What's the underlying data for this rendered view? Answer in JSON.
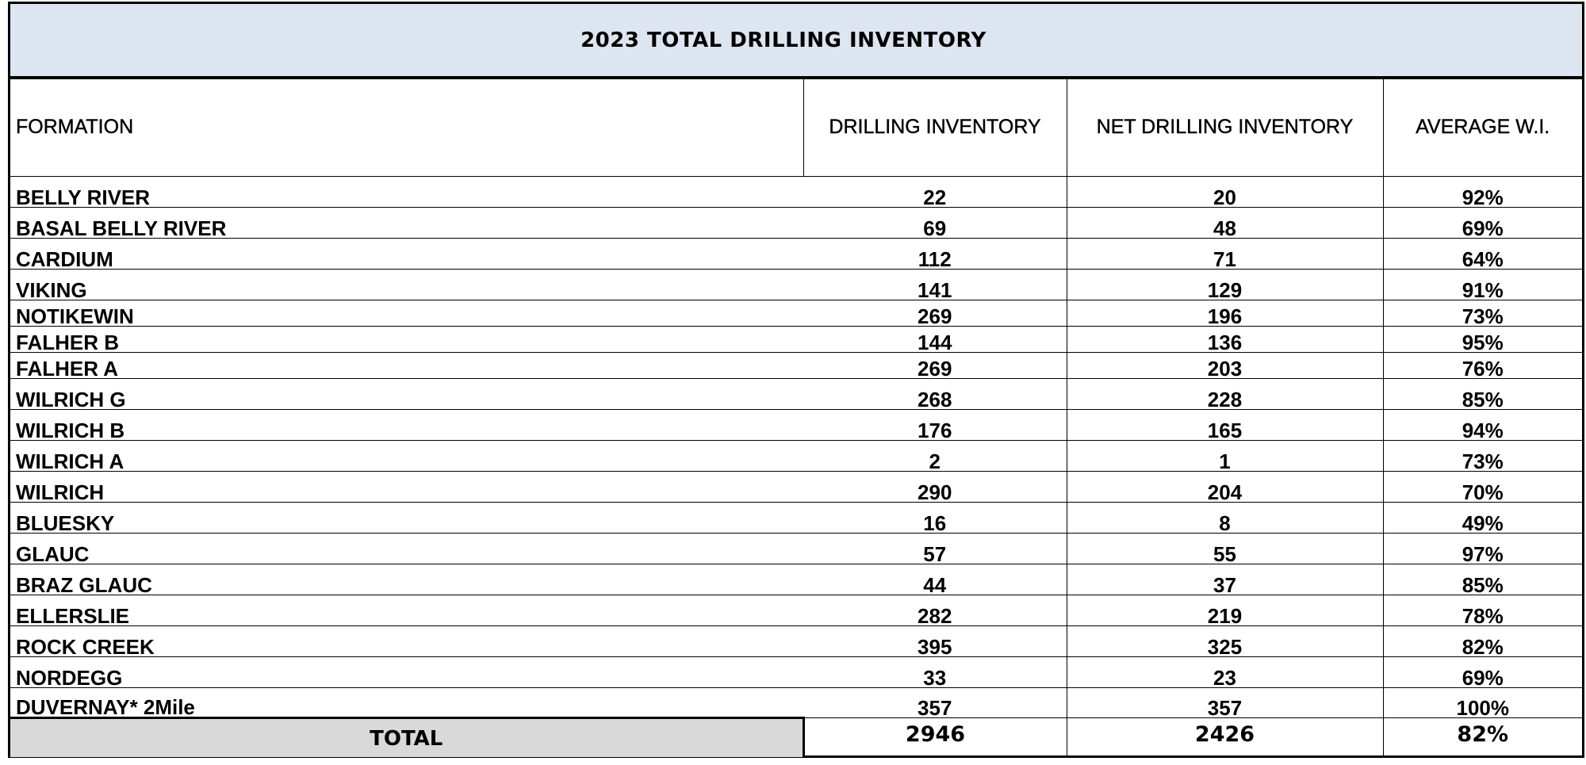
{
  "title": "2023 TOTAL DRILLING INVENTORY",
  "columns": {
    "formation": "FORMATION",
    "drilling_inventory": "DRILLING INVENTORY",
    "net_drilling_inventory": "NET DRILLING INVENTORY",
    "average_wi": "AVERAGE W.I."
  },
  "rows": [
    {
      "formation": "BELLY RIVER",
      "drilling_inventory": "22",
      "net_drilling_inventory": "20",
      "average_wi": "92%"
    },
    {
      "formation": "BASAL BELLY RIVER",
      "drilling_inventory": "69",
      "net_drilling_inventory": "48",
      "average_wi": "69%"
    },
    {
      "formation": "CARDIUM",
      "drilling_inventory": "112",
      "net_drilling_inventory": "71",
      "average_wi": "64%"
    },
    {
      "formation": "VIKING",
      "drilling_inventory": "141",
      "net_drilling_inventory": "129",
      "average_wi": "91%"
    },
    {
      "formation": "NOTIKEWIN",
      "drilling_inventory": "269",
      "net_drilling_inventory": "196",
      "average_wi": "73%"
    },
    {
      "formation": "FALHER B",
      "drilling_inventory": "144",
      "net_drilling_inventory": "136",
      "average_wi": "95%"
    },
    {
      "formation": "FALHER A",
      "drilling_inventory": "269",
      "net_drilling_inventory": "203",
      "average_wi": "76%"
    },
    {
      "formation": "WILRICH G",
      "drilling_inventory": "268",
      "net_drilling_inventory": "228",
      "average_wi": "85%"
    },
    {
      "formation": "WILRICH B",
      "drilling_inventory": "176",
      "net_drilling_inventory": "165",
      "average_wi": "94%"
    },
    {
      "formation": "WILRICH A",
      "drilling_inventory": "2",
      "net_drilling_inventory": "1",
      "average_wi": "73%"
    },
    {
      "formation": "WILRICH",
      "drilling_inventory": "290",
      "net_drilling_inventory": "204",
      "average_wi": "70%"
    },
    {
      "formation": "BLUESKY",
      "drilling_inventory": "16",
      "net_drilling_inventory": "8",
      "average_wi": "49%"
    },
    {
      "formation": "GLAUC",
      "drilling_inventory": "57",
      "net_drilling_inventory": "55",
      "average_wi": "97%"
    },
    {
      "formation": "BRAZ GLAUC",
      "drilling_inventory": "44",
      "net_drilling_inventory": "37",
      "average_wi": "85%"
    },
    {
      "formation": "ELLERSLIE",
      "drilling_inventory": "282",
      "net_drilling_inventory": "219",
      "average_wi": "78%"
    },
    {
      "formation": "ROCK CREEK",
      "drilling_inventory": "395",
      "net_drilling_inventory": "325",
      "average_wi": "82%"
    },
    {
      "formation": "NORDEGG",
      "drilling_inventory": "33",
      "net_drilling_inventory": "23",
      "average_wi": "69%"
    },
    {
      "formation": "DUVERNAY* 2Mile",
      "drilling_inventory": "357",
      "net_drilling_inventory": "357",
      "average_wi": "100%"
    }
  ],
  "total": {
    "label": "TOTAL",
    "drilling_inventory": "2946",
    "net_drilling_inventory": "2426",
    "average_wi": "82%"
  },
  "colors": {
    "title_band": "#dde5f1",
    "total_label_bg": "#d9d9d9",
    "grid": "#000000"
  }
}
